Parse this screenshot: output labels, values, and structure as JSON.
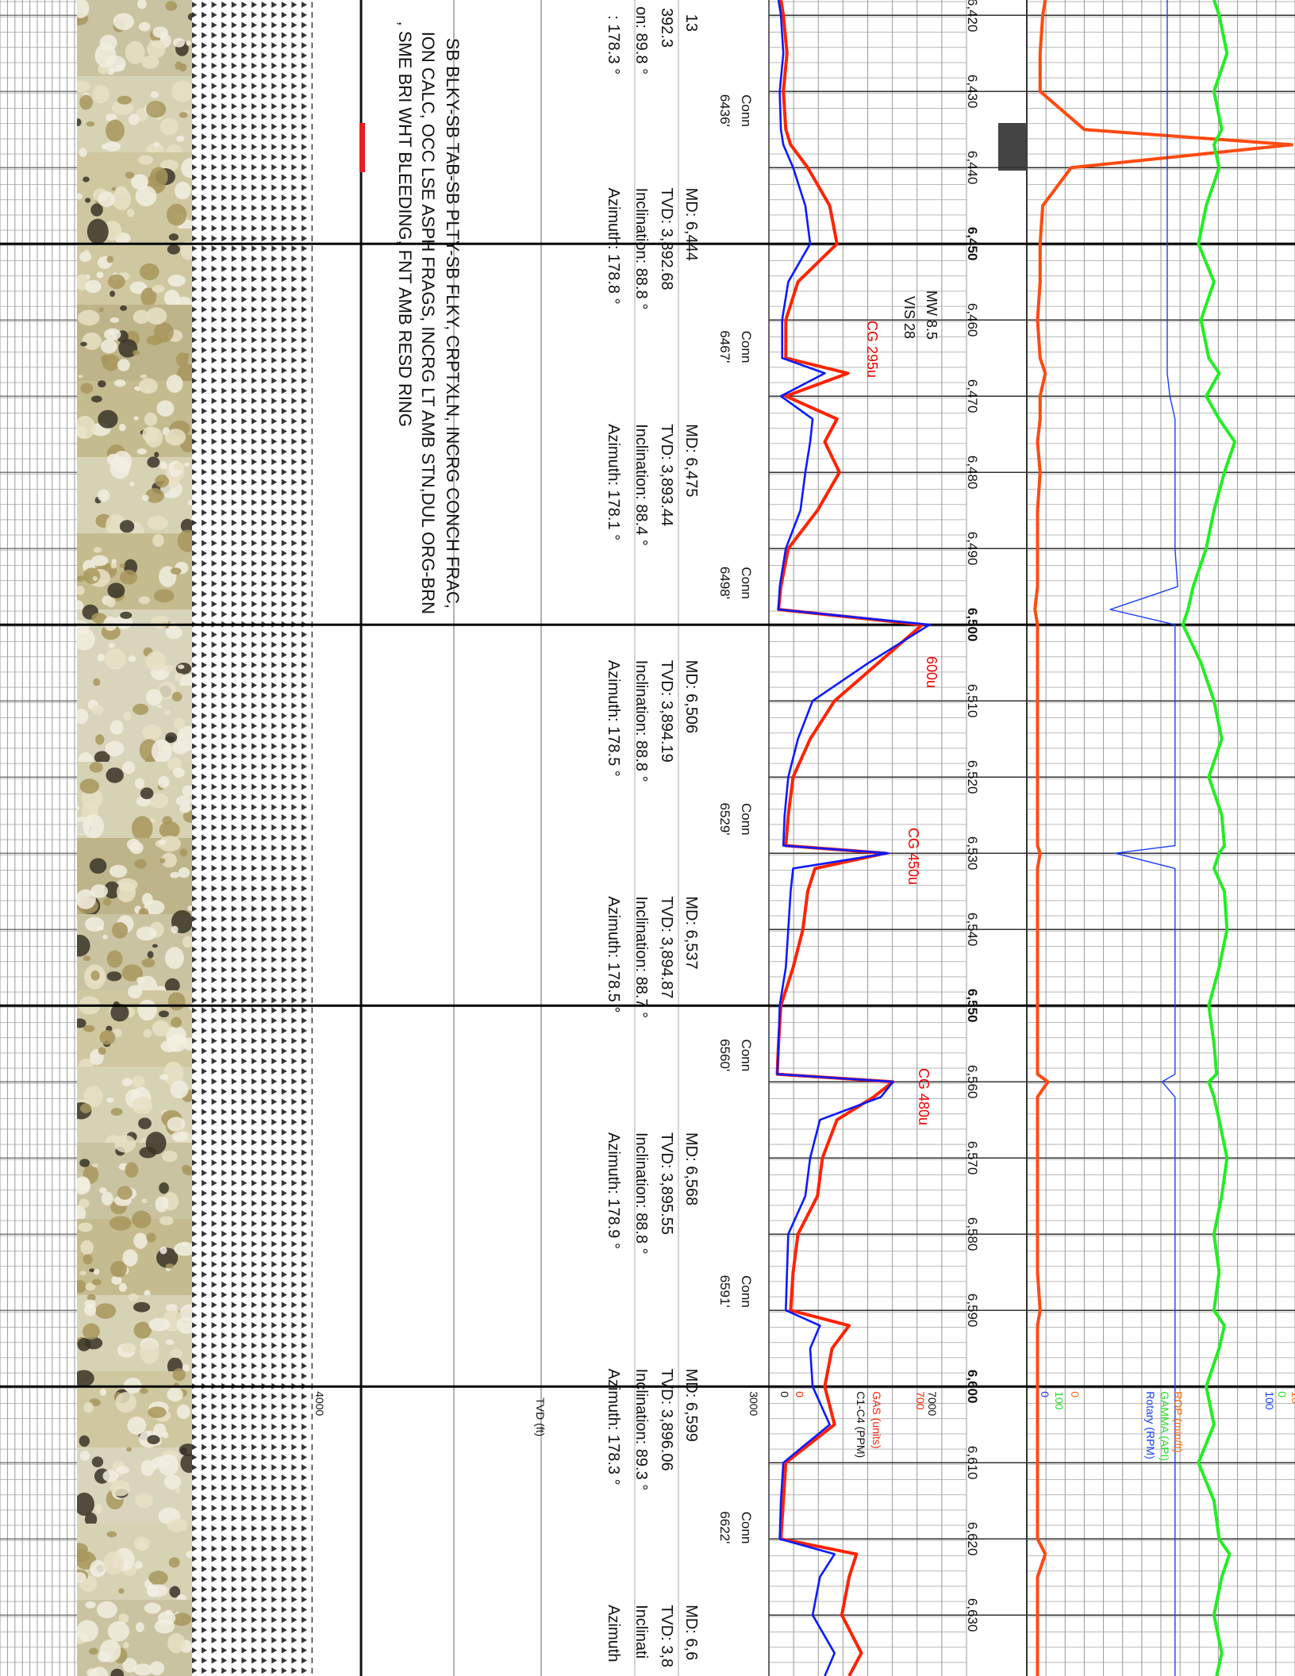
{
  "chart_data": {
    "type": "line",
    "ylim": [
      6418,
      6638
    ],
    "depth_ticks": [
      {
        "value": 6420,
        "label": "6,420"
      },
      {
        "value": 6430,
        "label": "6,430"
      },
      {
        "value": 6440,
        "label": "6,440"
      },
      {
        "value": 6450,
        "label": "6,450"
      },
      {
        "value": 6460,
        "label": "6,460"
      },
      {
        "value": 6470,
        "label": "6,470"
      },
      {
        "value": 6480,
        "label": "6,480"
      },
      {
        "value": 6490,
        "label": "6,490"
      },
      {
        "value": 6500,
        "label": "6,500"
      },
      {
        "value": 6510,
        "label": "6,510"
      },
      {
        "value": 6520,
        "label": "6,520"
      },
      {
        "value": 6530,
        "label": "6,530"
      },
      {
        "value": 6540,
        "label": "6,540"
      },
      {
        "value": 6550,
        "label": "6,550"
      },
      {
        "value": 6560,
        "label": "6,560"
      },
      {
        "value": 6570,
        "label": "6,570"
      },
      {
        "value": 6580,
        "label": "6,580"
      },
      {
        "value": 6590,
        "label": "6,590"
      },
      {
        "value": 6600,
        "label": "6,600"
      },
      {
        "value": 6610,
        "label": "6,610"
      },
      {
        "value": 6620,
        "label": "6,620"
      },
      {
        "value": 6630,
        "label": "6,630"
      }
    ],
    "depth": [
      6418,
      6420,
      6425,
      6430,
      6435,
      6437,
      6440,
      6445,
      6450,
      6455,
      6460,
      6465,
      6467,
      6470,
      6473,
      6476,
      6480,
      6485,
      6490,
      6495,
      6498,
      6500,
      6505,
      6510,
      6515,
      6520,
      6525,
      6529,
      6530,
      6532,
      6535,
      6540,
      6545,
      6550,
      6555,
      6559,
      6560,
      6562,
      6565,
      6570,
      6575,
      6580,
      6585,
      6590,
      6592,
      6595,
      6600,
      6605,
      6610,
      6615,
      6620,
      6622,
      6625,
      6630,
      6635,
      6638
    ],
    "series": [
      {
        "name": "GAS (units)",
        "track": "gas",
        "color": "#ff2200",
        "label_color": "#ff2200",
        "xlim": [
          0,
          700
        ],
        "values": [
          20,
          30,
          45,
          30,
          40,
          60,
          130,
          220,
          250,
          90,
          40,
          40,
          295,
          40,
          250,
          200,
          260,
          170,
          50,
          20,
          10,
          600,
          420,
          240,
          140,
          70,
          50,
          40,
          450,
          160,
          130,
          110,
          70,
          20,
          10,
          5,
          480,
          400,
          250,
          190,
          170,
          90,
          70,
          60,
          300,
          230,
          200,
          240,
          40,
          30,
          20,
          330,
          300,
          270,
          350,
          300
        ]
      },
      {
        "name": "C1-C4 (PPM)",
        "track": "gas",
        "color": "#0a1aff",
        "label_color": "#111111",
        "xlim": [
          0,
          7000
        ],
        "values": [
          100,
          200,
          300,
          150,
          200,
          300,
          700,
          1200,
          1400,
          500,
          250,
          250,
          2000,
          200,
          1500,
          1400,
          1200,
          1000,
          400,
          150,
          100,
          6300,
          3800,
          1500,
          900,
          500,
          350,
          300,
          4600,
          700,
          600,
          500,
          400,
          150,
          100,
          50,
          4800,
          4300,
          1800,
          1400,
          1200,
          500,
          450,
          400,
          1800,
          1400,
          1500,
          2200,
          300,
          200,
          150,
          2400,
          1800,
          1500,
          2400,
          2000
        ]
      },
      {
        "name": "ROP (min/ft)",
        "track": "drilling",
        "color": "#ff4a10",
        "label_color": "#ff6a10",
        "xlim": [
          0,
          10
        ],
        "values": [
          0.5,
          0.4,
          0.3,
          0.3,
          2,
          10,
          1.5,
          0.4,
          0.3,
          0.3,
          0.2,
          0.3,
          0.5,
          0.3,
          0.3,
          0.2,
          0.3,
          0.2,
          0.2,
          0.2,
          0.1,
          0.2,
          0.2,
          0.2,
          0.2,
          0.2,
          0.2,
          0.2,
          0.3,
          0.2,
          0.2,
          0.2,
          0.2,
          0.2,
          0.2,
          0.2,
          0.6,
          0.2,
          0.2,
          0.2,
          0.2,
          0.2,
          0.2,
          0.3,
          0.2,
          0.2,
          0.2,
          0.2,
          0.2,
          0.2,
          0.2,
          0.5,
          0.2,
          0.2,
          0.2,
          0.2
        ]
      },
      {
        "name": "GAMMA (API)",
        "track": "drilling",
        "color": "#22ee22",
        "label_color": "#22dd22",
        "xlim": [
          100,
          0
        ],
        "values": [
          30,
          28,
          25,
          30,
          27,
          30,
          28,
          33,
          36,
          30,
          35,
          32,
          28,
          33,
          28,
          22,
          26,
          30,
          33,
          38,
          40,
          42,
          35,
          30,
          27,
          32,
          27,
          26,
          28,
          30,
          26,
          25,
          28,
          32,
          30,
          29,
          32,
          30,
          28,
          25,
          27,
          30,
          28,
          30,
          26,
          28,
          33,
          30,
          36,
          30,
          28,
          24,
          27,
          30,
          27,
          29
        ]
      },
      {
        "name": "Rotary (RPM)",
        "track": "drilling",
        "color": "#1a3cff",
        "label_color": "#1a3cff",
        "xlim": [
          0,
          100
        ],
        "values": [
          52,
          52,
          52,
          52,
          52,
          52,
          52,
          52,
          52,
          52,
          52,
          52,
          52,
          53,
          55,
          55,
          55,
          55,
          55,
          56,
          30,
          55,
          55,
          55,
          55,
          55,
          55,
          55,
          32,
          55,
          55,
          55,
          55,
          55,
          55,
          55,
          50,
          55,
          55,
          55,
          55,
          55,
          55,
          55,
          55,
          55,
          55,
          55,
          55,
          55,
          55,
          55,
          55,
          55,
          55,
          55
        ]
      }
    ],
    "tvd_axis": {
      "title": "TVD (ft)",
      "xlim": [
        3000,
        4000
      ]
    }
  },
  "annotations": [
    "MW 8.5",
    "VIS 28",
    "CG 295u",
    "600u",
    "CG 450u",
    "CG 480u"
  ],
  "connections": [
    {
      "label": "Conn",
      "depth": 6436,
      "depth_label": "6436'"
    },
    {
      "label": "Conn",
      "depth": 6467,
      "depth_label": "6467'"
    },
    {
      "label": "Conn",
      "depth": 6498,
      "depth_label": "6498'"
    },
    {
      "label": "Conn",
      "depth": 6529,
      "depth_label": "6529'"
    },
    {
      "label": "Conn",
      "depth": 6560,
      "depth_label": "6560'"
    },
    {
      "label": "Conn",
      "depth": 6591,
      "depth_label": "6591'"
    },
    {
      "label": "Conn",
      "depth": 6622,
      "depth_label": "6622'"
    }
  ],
  "surveys": [
    [
      "13",
      "392.3",
      "on: 89.8 °",
      ": 178.3 °"
    ],
    [
      "MD: 6,444",
      "TVD: 3,892.68",
      "Inclination: 88.8 °",
      "Azimuth: 178.8 °"
    ],
    [
      "MD: 6,475",
      "TVD: 3,893.44",
      "Inclination: 88.4 °",
      "Azimuth: 178.1 °"
    ],
    [
      "MD: 6,506",
      "TVD: 3,894.19",
      "Inclination: 88.8 °",
      "Azimuth: 178.5 °"
    ],
    [
      "MD: 6,537",
      "TVD: 3,894.87",
      "Inclination: 88.7 °",
      "Azimuth: 178.5 °"
    ],
    [
      "MD: 6,568",
      "TVD: 3,895.55",
      "Inclination: 88.8 °",
      "Azimuth: 178.9 °"
    ],
    [
      "MD: 6,599",
      "TVD: 3,896.06",
      "Inclination: 89.3 °",
      "Azimuth: 178.3 °"
    ],
    [
      "MD: 6,6",
      "TVD: 3,8",
      "Inclinati",
      "Azimuth"
    ]
  ],
  "description": [
    "SB BLKY-SB TAB-SB PLTY-SB FLKY, CRPTXLN, INCRG CONCH FRAC,",
    "ION CALC, OCC LSE ASPH FRAGS, INCRG LT AMB STN,DUL ORG-BRN",
    ", SME BRI WHT BLEEDING, FNT AMB RESD RING"
  ]
}
